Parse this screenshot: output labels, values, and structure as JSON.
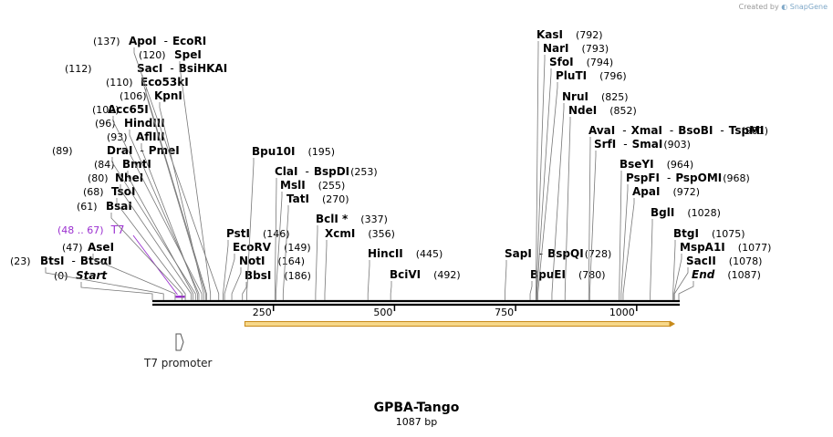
{
  "credit": {
    "prefix": "Created by",
    "brand": "SnapGene"
  },
  "title": "GPBA-Tango",
  "length_label": "1087 bp",
  "sequence_length": 1087,
  "axis_ticks": [
    250,
    500,
    750,
    1000
  ],
  "feature": {
    "name": "T7 promoter",
    "range": "(48 .. 67)",
    "label": "T7",
    "color": "#9b30d0"
  },
  "orf": {
    "start": 191,
    "end": 1087,
    "color": "#e8b84a"
  },
  "colors": {
    "backbone": "#000000",
    "feature": "#9b30d0",
    "orf_fill": "#f7d88a",
    "orf_border": "#c78a1a"
  },
  "sites": [
    {
      "pos": 0,
      "pos_label": "(0)",
      "names": [
        "Start"
      ],
      "italic": true,
      "gid": 0
    },
    {
      "pos": 23,
      "pos_label": "(23)",
      "names": [
        "BtsI",
        "BtsαI"
      ],
      "gid": 0
    },
    {
      "pos": 47,
      "pos_label": "(47)",
      "names": [
        "AseI"
      ],
      "gid": 0
    },
    {
      "pos": 61,
      "pos_label": "(61)",
      "names": [
        "BsaI"
      ],
      "gid": 0
    },
    {
      "pos": 68,
      "pos_label": "(68)",
      "names": [
        "TsoI"
      ],
      "gid": 0
    },
    {
      "pos": 80,
      "pos_label": "(80)",
      "names": [
        "NheI"
      ],
      "gid": 0
    },
    {
      "pos": 84,
      "pos_label": "(84)",
      "names": [
        "BmtI"
      ],
      "gid": 0
    },
    {
      "pos": 89,
      "pos_label": "(89)",
      "names": [
        "DraI",
        "PmeI"
      ],
      "gid": 0
    },
    {
      "pos": 93,
      "pos_label": "(93)",
      "names": [
        "AflIII"
      ],
      "gid": 0
    },
    {
      "pos": 96,
      "pos_label": "(96)",
      "names": [
        "HindIII"
      ],
      "gid": 0
    },
    {
      "pos": 102,
      "pos_label": "(102)",
      "names": [
        "Acc65I"
      ],
      "gid": 0
    },
    {
      "pos": 106,
      "pos_label": "(106)",
      "names": [
        "KpnI"
      ],
      "gid": 0
    },
    {
      "pos": 110,
      "pos_label": "(110)",
      "names": [
        "Eco53kI"
      ],
      "gid": 0
    },
    {
      "pos": 112,
      "pos_label": "(112)",
      "names": [
        "SacI",
        "BsiHKAI"
      ],
      "gid": 0
    },
    {
      "pos": 120,
      "pos_label": "(120)",
      "names": [
        "SpeI"
      ],
      "gid": 0
    },
    {
      "pos": 137,
      "pos_label": "(137)",
      "names": [
        "ApoI",
        "EcoRI"
      ],
      "gid": 0
    },
    {
      "pos": 146,
      "pos_label": "(146)",
      "names": [
        "PstI"
      ],
      "gid": 1
    },
    {
      "pos": 149,
      "pos_label": "(149)",
      "names": [
        "EcoRV"
      ],
      "gid": 1
    },
    {
      "pos": 164,
      "pos_label": "(164)",
      "names": [
        "NotI"
      ],
      "gid": 1
    },
    {
      "pos": 186,
      "pos_label": "(186)",
      "names": [
        "BbsI"
      ],
      "gid": 1
    },
    {
      "pos": 195,
      "pos_label": "(195)",
      "names": [
        "Bpu10I"
      ],
      "gid": 2
    },
    {
      "pos": 253,
      "pos_label": "(253)",
      "names": [
        "ClaI",
        "BspDI"
      ],
      "gid": 2
    },
    {
      "pos": 255,
      "pos_label": "(255)",
      "names": [
        "MslI"
      ],
      "gid": 2
    },
    {
      "pos": 270,
      "pos_label": "(270)",
      "names": [
        "TatI"
      ],
      "gid": 2
    },
    {
      "pos": 337,
      "pos_label": "(337)",
      "names": [
        "BclI *"
      ],
      "gid": 3
    },
    {
      "pos": 356,
      "pos_label": "(356)",
      "names": [
        "XcmI"
      ],
      "gid": 3
    },
    {
      "pos": 445,
      "pos_label": "(445)",
      "names": [
        "HincII"
      ],
      "gid": 4
    },
    {
      "pos": 492,
      "pos_label": "(492)",
      "names": [
        "BciVI"
      ],
      "gid": 4
    },
    {
      "pos": 728,
      "pos_label": "(728)",
      "names": [
        "SapI",
        "BspQI"
      ],
      "gid": 5
    },
    {
      "pos": 780,
      "pos_label": "(780)",
      "names": [
        "BpuEI"
      ],
      "gid": 5
    },
    {
      "pos": 792,
      "pos_label": "(792)",
      "names": [
        "KasI"
      ],
      "gid": 6
    },
    {
      "pos": 793,
      "pos_label": "(793)",
      "names": [
        "NarI"
      ],
      "gid": 6
    },
    {
      "pos": 794,
      "pos_label": "(794)",
      "names": [
        "SfoI"
      ],
      "gid": 6
    },
    {
      "pos": 796,
      "pos_label": "(796)",
      "names": [
        "PluTI"
      ],
      "gid": 6
    },
    {
      "pos": 825,
      "pos_label": "(825)",
      "names": [
        "NruI"
      ],
      "gid": 6
    },
    {
      "pos": 852,
      "pos_label": "(852)",
      "names": [
        "NdeI"
      ],
      "gid": 6
    },
    {
      "pos": 901,
      "pos_label": "(901)",
      "names": [
        "AvaI",
        "XmaI",
        "BsoBI",
        "TspMI"
      ],
      "gid": 7
    },
    {
      "pos": 903,
      "pos_label": "(903)",
      "names": [
        "SrfI",
        "SmaI"
      ],
      "gid": 7
    },
    {
      "pos": 964,
      "pos_label": "(964)",
      "names": [
        "BseYI"
      ],
      "gid": 8
    },
    {
      "pos": 968,
      "pos_label": "(968)",
      "names": [
        "PspFI",
        "PspOMI"
      ],
      "gid": 8
    },
    {
      "pos": 972,
      "pos_label": "(972)",
      "names": [
        "ApaI"
      ],
      "gid": 8
    },
    {
      "pos": 1028,
      "pos_label": "(1028)",
      "names": [
        "BglI"
      ],
      "gid": 9
    },
    {
      "pos": 1075,
      "pos_label": "(1075)",
      "names": [
        "BtgI"
      ],
      "gid": 9
    },
    {
      "pos": 1077,
      "pos_label": "(1077)",
      "names": [
        "MspA1I"
      ],
      "gid": 9
    },
    {
      "pos": 1078,
      "pos_label": "(1078)",
      "names": [
        "SacII"
      ],
      "gid": 9
    },
    {
      "pos": 1087,
      "pos_label": "(1087)",
      "names": [
        "End"
      ],
      "italic": true,
      "gid": 9
    }
  ]
}
